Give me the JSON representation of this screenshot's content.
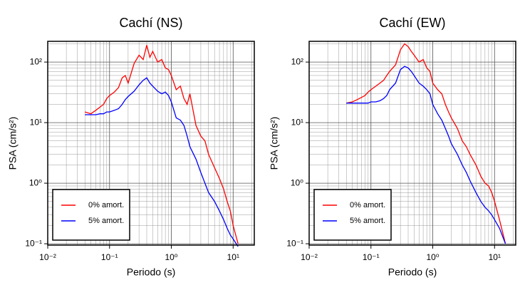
{
  "chart_data": [
    {
      "type": "line",
      "title": "Cachí (NS)",
      "xlabel": "Periodo (s)",
      "ylabel": "PSA (cm/s²)",
      "log_x": true,
      "log_y": true,
      "grid": true,
      "legend": "lower left",
      "xlim": [
        0.01,
        22
      ],
      "ylim": [
        0.095,
        220
      ],
      "xticks": [
        {
          "value": 0.01,
          "label": "10⁻²"
        },
        {
          "value": 0.1,
          "label": "10⁻¹"
        },
        {
          "value": 1,
          "label": "10⁰"
        },
        {
          "value": 10,
          "label": "10¹"
        }
      ],
      "yticks": [
        {
          "value": 0.1,
          "label": "10⁻¹"
        },
        {
          "value": 1,
          "label": "10⁰"
        },
        {
          "value": 10,
          "label": "10¹"
        },
        {
          "value": 100,
          "label": "10²"
        }
      ],
      "x": [
        0.04,
        0.05,
        0.06,
        0.07,
        0.08,
        0.09,
        0.1,
        0.12,
        0.14,
        0.16,
        0.18,
        0.2,
        0.25,
        0.3,
        0.35,
        0.4,
        0.45,
        0.5,
        0.6,
        0.7,
        0.8,
        0.9,
        1.0,
        1.2,
        1.4,
        1.6,
        1.8,
        2,
        2.5,
        3,
        3.5,
        4,
        5,
        6,
        7,
        8,
        9,
        10,
        12
      ],
      "series": [
        {
          "name": "0% amort.",
          "color": "#ff0000",
          "values": [
            15,
            14,
            16,
            18,
            20,
            25,
            28,
            32,
            38,
            55,
            60,
            45,
            95,
            130,
            110,
            190,
            120,
            150,
            100,
            110,
            80,
            75,
            60,
            35,
            40,
            25,
            20,
            30,
            9,
            6,
            5,
            3,
            1.8,
            1.2,
            0.8,
            0.5,
            0.35,
            0.2,
            0.1
          ]
        },
        {
          "name": "5% amort.",
          "color": "#0000ff",
          "values": [
            13.5,
            13.5,
            13.5,
            14,
            14,
            15,
            15,
            16,
            17,
            20,
            24,
            27,
            33,
            42,
            50,
            55,
            45,
            40,
            33,
            30,
            32,
            28,
            22,
            12,
            11,
            9,
            6,
            4,
            2.5,
            1.5,
            1,
            0.7,
            0.5,
            0.35,
            0.25,
            0.18,
            0.14,
            0.12,
            0.09
          ]
        }
      ]
    },
    {
      "type": "line",
      "title": "Cachí (EW)",
      "xlabel": "Periodo (s)",
      "ylabel": "PSA (cm/s²)",
      "log_x": true,
      "log_y": true,
      "grid": true,
      "legend": "lower left",
      "xlim": [
        0.01,
        22
      ],
      "ylim": [
        0.095,
        220
      ],
      "xticks": [
        {
          "value": 0.01,
          "label": "10⁻²"
        },
        {
          "value": 0.1,
          "label": "10⁻¹"
        },
        {
          "value": 1,
          "label": "10⁰"
        },
        {
          "value": 10,
          "label": "10¹"
        }
      ],
      "yticks": [
        {
          "value": 0.1,
          "label": "10⁻¹"
        },
        {
          "value": 1,
          "label": "10⁰"
        },
        {
          "value": 10,
          "label": "10¹"
        },
        {
          "value": 100,
          "label": "10²"
        }
      ],
      "x": [
        0.04,
        0.05,
        0.06,
        0.07,
        0.08,
        0.09,
        0.1,
        0.12,
        0.14,
        0.16,
        0.18,
        0.2,
        0.25,
        0.3,
        0.35,
        0.4,
        0.45,
        0.5,
        0.6,
        0.7,
        0.8,
        0.9,
        1.0,
        1.2,
        1.4,
        1.6,
        1.8,
        2,
        2.5,
        3,
        3.5,
        4,
        5,
        6,
        7,
        8,
        9,
        10,
        12,
        15
      ],
      "series": [
        {
          "name": "0% amort.",
          "color": "#ff0000",
          "values": [
            21,
            22,
            24,
            26,
            28,
            32,
            35,
            40,
            45,
            50,
            60,
            70,
            90,
            160,
            200,
            180,
            150,
            130,
            100,
            110,
            80,
            70,
            45,
            35,
            30,
            20,
            15,
            12,
            8,
            5,
            4,
            3,
            2,
            1.3,
            1.0,
            0.9,
            0.7,
            0.5,
            0.25,
            0.1
          ]
        },
        {
          "name": "5% amort.",
          "color": "#0000ff",
          "values": [
            21,
            21,
            21,
            21,
            21,
            21,
            22,
            22,
            23,
            25,
            28,
            35,
            45,
            75,
            85,
            80,
            70,
            60,
            45,
            40,
            35,
            30,
            20,
            14,
            11,
            8,
            6,
            4.5,
            3,
            2,
            1.5,
            1.1,
            0.7,
            0.5,
            0.4,
            0.35,
            0.3,
            0.25,
            0.18,
            0.1
          ]
        }
      ]
    }
  ]
}
